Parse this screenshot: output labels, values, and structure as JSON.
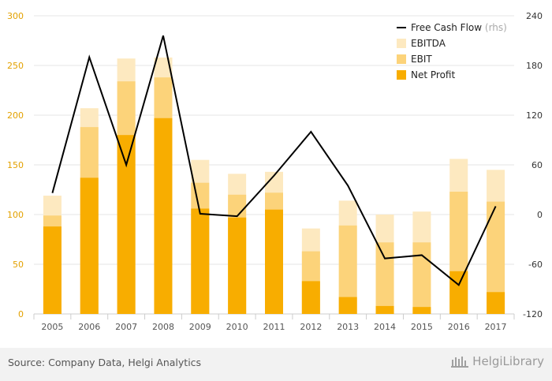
{
  "chart_data": {
    "type": "bar",
    "stacked": false,
    "categories": [
      "2005",
      "2006",
      "2007",
      "2008",
      "2009",
      "2010",
      "2011",
      "2012",
      "2013",
      "2014",
      "2015",
      "2016",
      "2017"
    ],
    "series": [
      {
        "name": "EBITDA",
        "values": [
          119,
          207,
          257,
          258,
          155,
          141,
          143,
          86,
          114,
          100,
          103,
          156,
          145
        ],
        "color": "#fde9c0"
      },
      {
        "name": "EBIT",
        "values": [
          99,
          188,
          234,
          238,
          132,
          120,
          122,
          63,
          89,
          72,
          72,
          123,
          113
        ],
        "color": "#fcd37a"
      },
      {
        "name": "Net Profit",
        "values": [
          88,
          137,
          180,
          197,
          106,
          97,
          105,
          33,
          17,
          8,
          7,
          43,
          22
        ],
        "color": "#f8ad00"
      }
    ],
    "line_series": {
      "name": "Free Cash Flow",
      "axis": "rhs",
      "values": [
        26,
        190,
        60,
        216,
        1,
        -2,
        47,
        100,
        35,
        -53,
        -49,
        -85,
        10
      ],
      "color": "#000000"
    },
    "legend_note": "(rhs)",
    "left_axis": {
      "min": 0,
      "max": 300,
      "ticks": [
        "0",
        "50",
        "100",
        "150",
        "200",
        "250",
        "300"
      ]
    },
    "right_axis": {
      "min": -120,
      "max": 240,
      "ticks": [
        "-120",
        "-60",
        "0",
        "60",
        "120",
        "180",
        "240"
      ]
    },
    "grid": true,
    "legend_position": "top-right",
    "title": "",
    "xlabel": "",
    "ylabel": ""
  },
  "footer": {
    "source": "Source: Company Data, Helgi Analytics",
    "brand": "HelgiLibrary"
  },
  "colors": {
    "left_tick": "#e3a100",
    "grid": "#e6e6e6",
    "footer_bg": "#f2f2f2"
  }
}
